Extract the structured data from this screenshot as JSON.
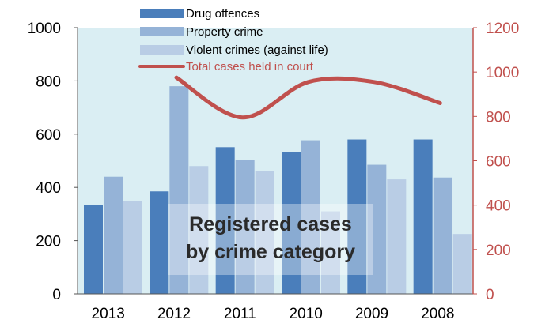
{
  "chart_data": {
    "type": "bar",
    "categories": [
      "2013",
      "2012",
      "2011",
      "2010",
      "2009",
      "2008"
    ],
    "series": [
      {
        "name": "Drug offences",
        "values": [
          333,
          385,
          551,
          532,
          580,
          580
        ],
        "color": "#4a7ebb"
      },
      {
        "name": "Property crime",
        "values": [
          440,
          780,
          503,
          577,
          485,
          437
        ],
        "color": "#95b3d7"
      },
      {
        "name": "Violent crimes (against life)",
        "values": [
          350,
          480,
          460,
          310,
          430,
          225
        ],
        "color": "#b9cde5"
      }
    ],
    "line_series": {
      "name": "Total cases held in court",
      "axis": "right",
      "values": [
        null,
        975,
        795,
        955,
        955,
        860
      ],
      "color": "#c0504d"
    },
    "ylim_left": [
      0,
      1000
    ],
    "yticks_left": [
      "0",
      "200",
      "400",
      "600",
      "800",
      "1000"
    ],
    "ylim_right": [
      0,
      1200
    ],
    "yticks_right": [
      "0",
      "200",
      "400",
      "600",
      "800",
      "1000",
      "1200"
    ],
    "right_axis_color": "#c0504d",
    "plot_background": "#daeef3",
    "overlay_text": [
      "Registered cases",
      "by crime category"
    ],
    "legend_position": "top-left (inside plot)",
    "grid": false
  }
}
